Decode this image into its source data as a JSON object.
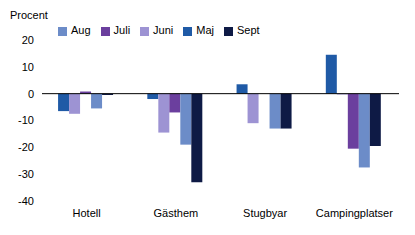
{
  "chart_data": {
    "type": "bar",
    "y_label": "Procent",
    "categories": [
      "Hotell",
      "Gästhem",
      "Stugbyar",
      "Campingplatser"
    ],
    "series": [
      {
        "name": "Maj",
        "color": "#1f5aa6",
        "values": [
          -6.5,
          -2,
          3.5,
          14.5
        ]
      },
      {
        "name": "Juni",
        "color": "#9d93d3",
        "values": [
          -7.5,
          -14.5,
          -11,
          -0.3
        ]
      },
      {
        "name": "Juli",
        "color": "#6b3f9e",
        "values": [
          0.8,
          -7,
          0,
          -20.5
        ]
      },
      {
        "name": "Aug",
        "color": "#6c8cc8",
        "values": [
          -5.5,
          -19,
          -13,
          -27.5
        ]
      },
      {
        "name": "Sept",
        "color": "#0e1a45",
        "values": [
          -0.5,
          -33,
          -13,
          -19.5
        ]
      }
    ],
    "ylim": [
      -40,
      20
    ],
    "yticks": [
      -40,
      -30,
      -20,
      -10,
      0,
      10,
      20
    ],
    "grid": false,
    "legend": "upper left"
  }
}
